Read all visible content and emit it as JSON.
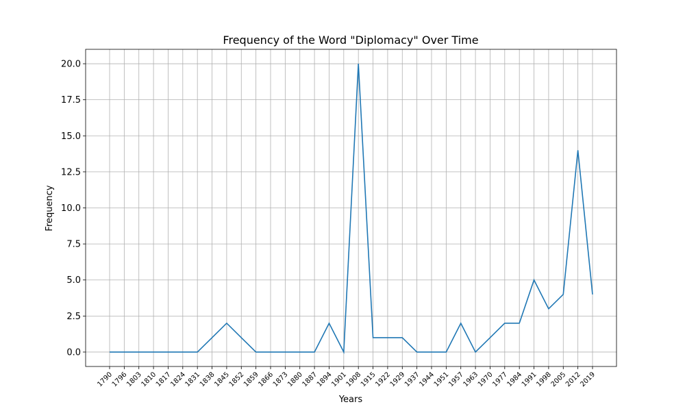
{
  "chart_data": {
    "type": "line",
    "title": "Frequency of the Word \"Diplomacy\" Over Time",
    "xlabel": "Years",
    "ylabel": "Frequency",
    "ylim": [
      -1.0,
      21.0
    ],
    "yticks": [
      "0.0",
      "2.5",
      "5.0",
      "7.5",
      "10.0",
      "12.5",
      "15.0",
      "17.5",
      "20.0"
    ],
    "grid": true,
    "line_color": "#1f77b4",
    "categories": [
      "1790",
      "1796",
      "1803",
      "1810",
      "1817",
      "1824",
      "1831",
      "1838",
      "1845",
      "1852",
      "1859",
      "1866",
      "1873",
      "1880",
      "1887",
      "1894",
      "1901",
      "1908",
      "1915",
      "1922",
      "1929",
      "1937",
      "1944",
      "1951",
      "1957",
      "1963",
      "1970",
      "1977",
      "1984",
      "1991",
      "1998",
      "2005",
      "2012",
      "2019"
    ],
    "values": [
      0,
      0,
      0,
      0,
      0,
      0,
      0,
      1,
      2,
      1,
      0,
      0,
      0,
      0,
      0,
      2,
      0,
      20,
      1,
      1,
      1,
      0,
      0,
      0,
      2,
      0,
      1,
      2,
      2,
      5,
      3,
      4,
      14,
      4
    ]
  }
}
